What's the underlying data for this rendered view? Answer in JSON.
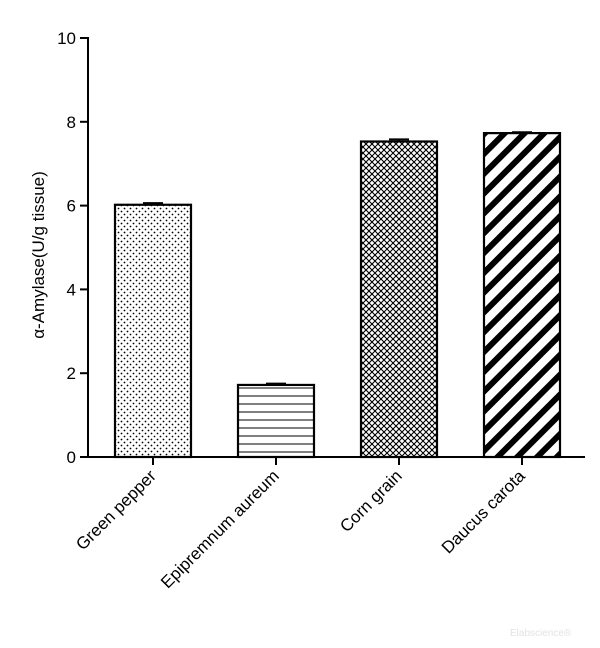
{
  "chart_data": {
    "type": "bar",
    "categories": [
      "Green pepper",
      "Epipremnum aureum",
      "Corn grain",
      "Daucus carota"
    ],
    "values": [
      6.02,
      1.72,
      7.53,
      7.73
    ],
    "errors": [
      0.04,
      0.03,
      0.05,
      0.02
    ],
    "patterns": [
      "dots",
      "horizontal-lines",
      "crosshatch",
      "diagonal-stripes"
    ],
    "ylabel": "α-Amylase(U/g tissue)",
    "xlabel": "",
    "title": "",
    "ylim": [
      0,
      10
    ],
    "yticks": [
      0,
      2,
      4,
      6,
      8,
      10
    ],
    "grid": false,
    "legend": "none",
    "bar_color": "#000000",
    "background": "#ffffff"
  },
  "watermark": {
    "text": "Elabscience®"
  }
}
